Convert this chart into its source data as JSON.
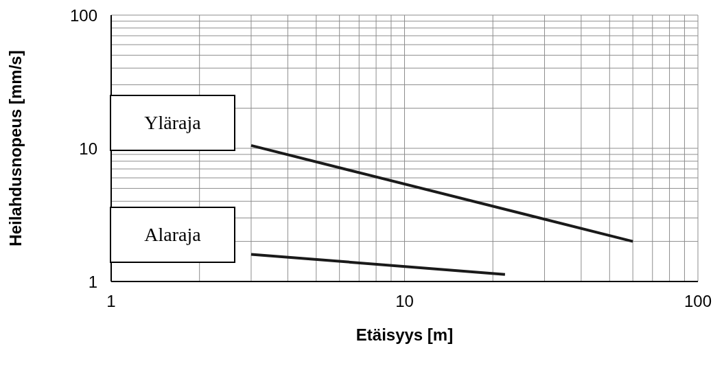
{
  "chart_data": {
    "type": "line",
    "xlabel": "Etäisyys [m]",
    "ylabel": "Heilahdusnopeus [mm/s]",
    "log": "xy",
    "grid": true,
    "legend": false,
    "marker": "none",
    "line_style": "solid",
    "xlim": [
      1,
      100
    ],
    "ylim": [
      1,
      100
    ],
    "xticks": [
      1,
      {
        "value": 2,
        "label": null
      },
      {
        "value": 3,
        "label": null
      },
      {
        "value": 4,
        "label": null
      },
      {
        "value": 5,
        "label": null
      },
      {
        "value": 6,
        "label": null
      },
      {
        "value": 7,
        "label": null
      },
      {
        "value": 8,
        "label": null
      },
      {
        "value": 9,
        "label": null
      },
      10,
      {
        "value": 20,
        "label": null
      },
      {
        "value": 30,
        "label": null
      },
      {
        "value": 40,
        "label": null
      },
      {
        "value": 50,
        "label": null
      },
      {
        "value": 60,
        "label": null
      },
      {
        "value": 70,
        "label": null
      },
      {
        "value": 80,
        "label": null
      },
      {
        "value": 90,
        "label": null
      },
      100
    ],
    "yticks": [
      1,
      {
        "value": 2,
        "label": null
      },
      {
        "value": 3,
        "label": null
      },
      {
        "value": 4,
        "label": null
      },
      {
        "value": 5,
        "label": null
      },
      {
        "value": 6,
        "label": null
      },
      {
        "value": 7,
        "label": null
      },
      {
        "value": 8,
        "label": null
      },
      {
        "value": 9,
        "label": null
      },
      10,
      {
        "value": 20,
        "label": null
      },
      {
        "value": 30,
        "label": null
      },
      {
        "value": 40,
        "label": null
      },
      {
        "value": 50,
        "label": null
      },
      {
        "value": 60,
        "label": null
      },
      {
        "value": 70,
        "label": null
      },
      {
        "value": 80,
        "label": null
      },
      {
        "value": 90,
        "label": null
      },
      100
    ],
    "series": [
      {
        "name": "Yläraja",
        "color": "#1a1a1a",
        "x": [
          3,
          60
        ],
        "values": [
          10.5,
          2
        ]
      },
      {
        "name": "Alaraja",
        "color": "#1a1a1a",
        "x": [
          3,
          22
        ],
        "values": [
          1.6,
          1.13
        ]
      }
    ]
  }
}
